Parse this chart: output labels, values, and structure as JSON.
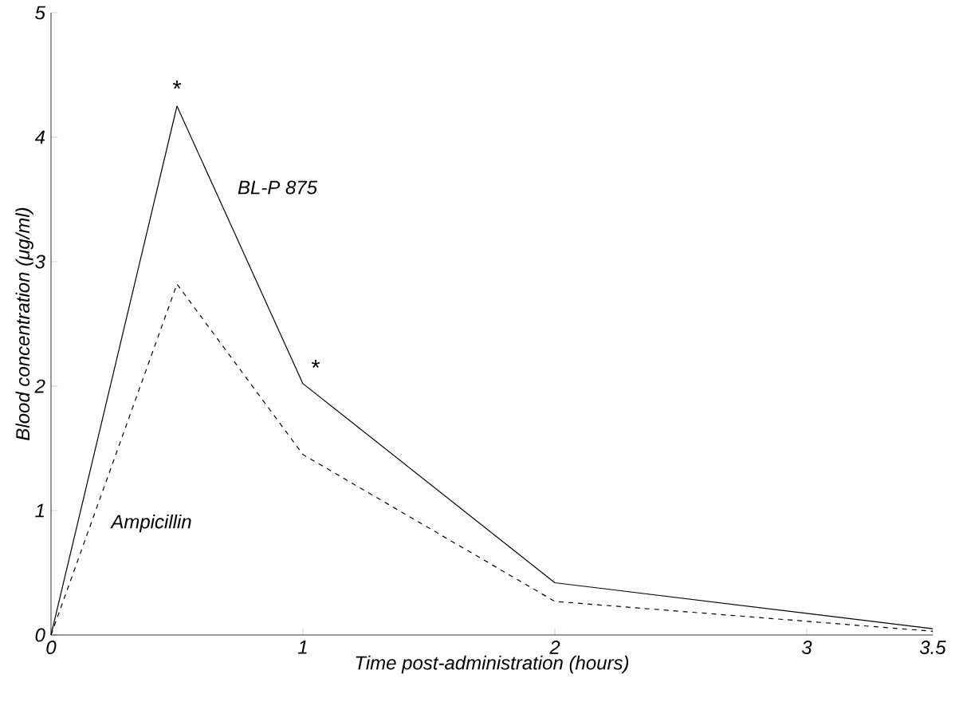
{
  "chart_data": {
    "type": "line",
    "xlabel": "Time post-administration  (hours)",
    "ylabel": "Blood concentration (μg/ml)",
    "x": [
      0,
      0.5,
      1,
      2,
      3.5
    ],
    "series": [
      {
        "name": "BL-P 875",
        "color": "#000000",
        "line_style": "solid",
        "values": [
          0,
          4.25,
          2.02,
          0.42,
          0.05
        ]
      },
      {
        "name": "Ampicillin",
        "color": "#000000",
        "line_style": "dashed",
        "values": [
          0,
          2.82,
          1.45,
          0.27,
          0.03
        ]
      }
    ],
    "xlim": [
      0,
      3.5
    ],
    "ylim": [
      0,
      5
    ],
    "xticks": [
      0,
      1,
      2,
      3,
      3.5
    ],
    "yticks": [
      0,
      1,
      2,
      3,
      4,
      5
    ],
    "annotations": [
      {
        "text": "*",
        "x": 0.5,
        "y": 4.25
      },
      {
        "text": "*",
        "x": 1,
        "y": 2.02
      }
    ]
  }
}
